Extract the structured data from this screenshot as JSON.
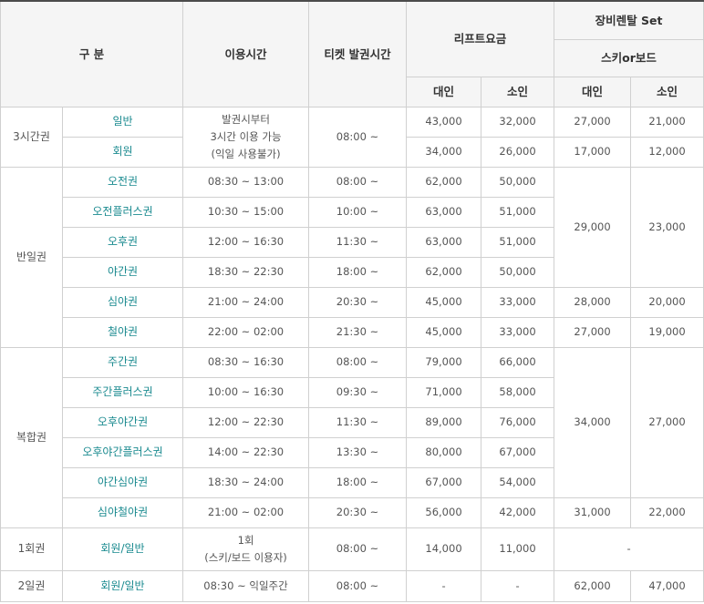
{
  "header": {
    "category": "구 분",
    "usage_time": "이용시간",
    "ticket_time": "티켓 발권시간",
    "lift_fee": "리프트요금",
    "rental_set": "장비렌탈 Set",
    "rental_type": "스키or보드",
    "adult": "대인",
    "child": "소인"
  },
  "groups": {
    "g3h": "3시간권",
    "half": "반일권",
    "combo": "복합권",
    "once": "1회권",
    "twoday": "2일권"
  },
  "rows": [
    {
      "name": "일반",
      "usage": "발권시부터\n3시간 이용 가능\n(익일 사용불가)",
      "ticket": "08:00 ~",
      "adult": "43,000",
      "child": "32,000",
      "r_adult": "27,000",
      "r_child": "21,000"
    },
    {
      "name": "회원",
      "adult": "34,000",
      "child": "26,000",
      "r_adult": "17,000",
      "r_child": "12,000"
    },
    {
      "name": "오전권",
      "usage": "08:30 ~ 13:00",
      "ticket": "08:00 ~",
      "adult": "62,000",
      "child": "50,000",
      "r_adult": "29,000",
      "r_child": "23,000"
    },
    {
      "name": "오전플러스권",
      "usage": "10:30 ~ 15:00",
      "ticket": "10:00 ~",
      "adult": "63,000",
      "child": "51,000"
    },
    {
      "name": "오후권",
      "usage": "12:00 ~ 16:30",
      "ticket": "11:30 ~",
      "adult": "63,000",
      "child": "51,000"
    },
    {
      "name": "야간권",
      "usage": "18:30 ~ 22:30",
      "ticket": "18:00 ~",
      "adult": "62,000",
      "child": "50,000"
    },
    {
      "name": "심야권",
      "usage": "21:00 ~ 24:00",
      "ticket": "20:30 ~",
      "adult": "45,000",
      "child": "33,000",
      "r_adult": "28,000",
      "r_child": "20,000"
    },
    {
      "name": "철야권",
      "usage": "22:00 ~ 02:00",
      "ticket": "21:30 ~",
      "adult": "45,000",
      "child": "33,000",
      "r_adult": "27,000",
      "r_child": "19,000"
    },
    {
      "name": "주간권",
      "usage": "08:30 ~ 16:30",
      "ticket": "08:00 ~",
      "adult": "79,000",
      "child": "66,000",
      "r_adult": "34,000",
      "r_child": "27,000"
    },
    {
      "name": "주간플러스권",
      "usage": "10:00 ~ 16:30",
      "ticket": "09:30 ~",
      "adult": "71,000",
      "child": "58,000"
    },
    {
      "name": "오후야간권",
      "usage": "12:00 ~ 22:30",
      "ticket": "11:30 ~",
      "adult": "89,000",
      "child": "76,000"
    },
    {
      "name": "오후야간플러스권",
      "usage": "14:00 ~ 22:30",
      "ticket": "13:30 ~",
      "adult": "80,000",
      "child": "67,000"
    },
    {
      "name": "야간심야권",
      "usage": "18:30 ~ 24:00",
      "ticket": "18:00 ~",
      "adult": "67,000",
      "child": "54,000"
    },
    {
      "name": "심야철야권",
      "usage": "21:00 ~ 02:00",
      "ticket": "20:30 ~",
      "adult": "56,000",
      "child": "42,000",
      "r_adult": "31,000",
      "r_child": "22,000"
    },
    {
      "name": "회원/일반",
      "usage": "1회\n(스키/보드 이용자)",
      "ticket": "08:00 ~",
      "adult": "14,000",
      "child": "11,000",
      "rental": "-"
    },
    {
      "name": "회원/일반",
      "usage": "08:30 ~ 익일주간",
      "ticket": "08:00 ~",
      "adult": "-",
      "child": "-",
      "r_adult": "62,000",
      "r_child": "47,000"
    }
  ]
}
